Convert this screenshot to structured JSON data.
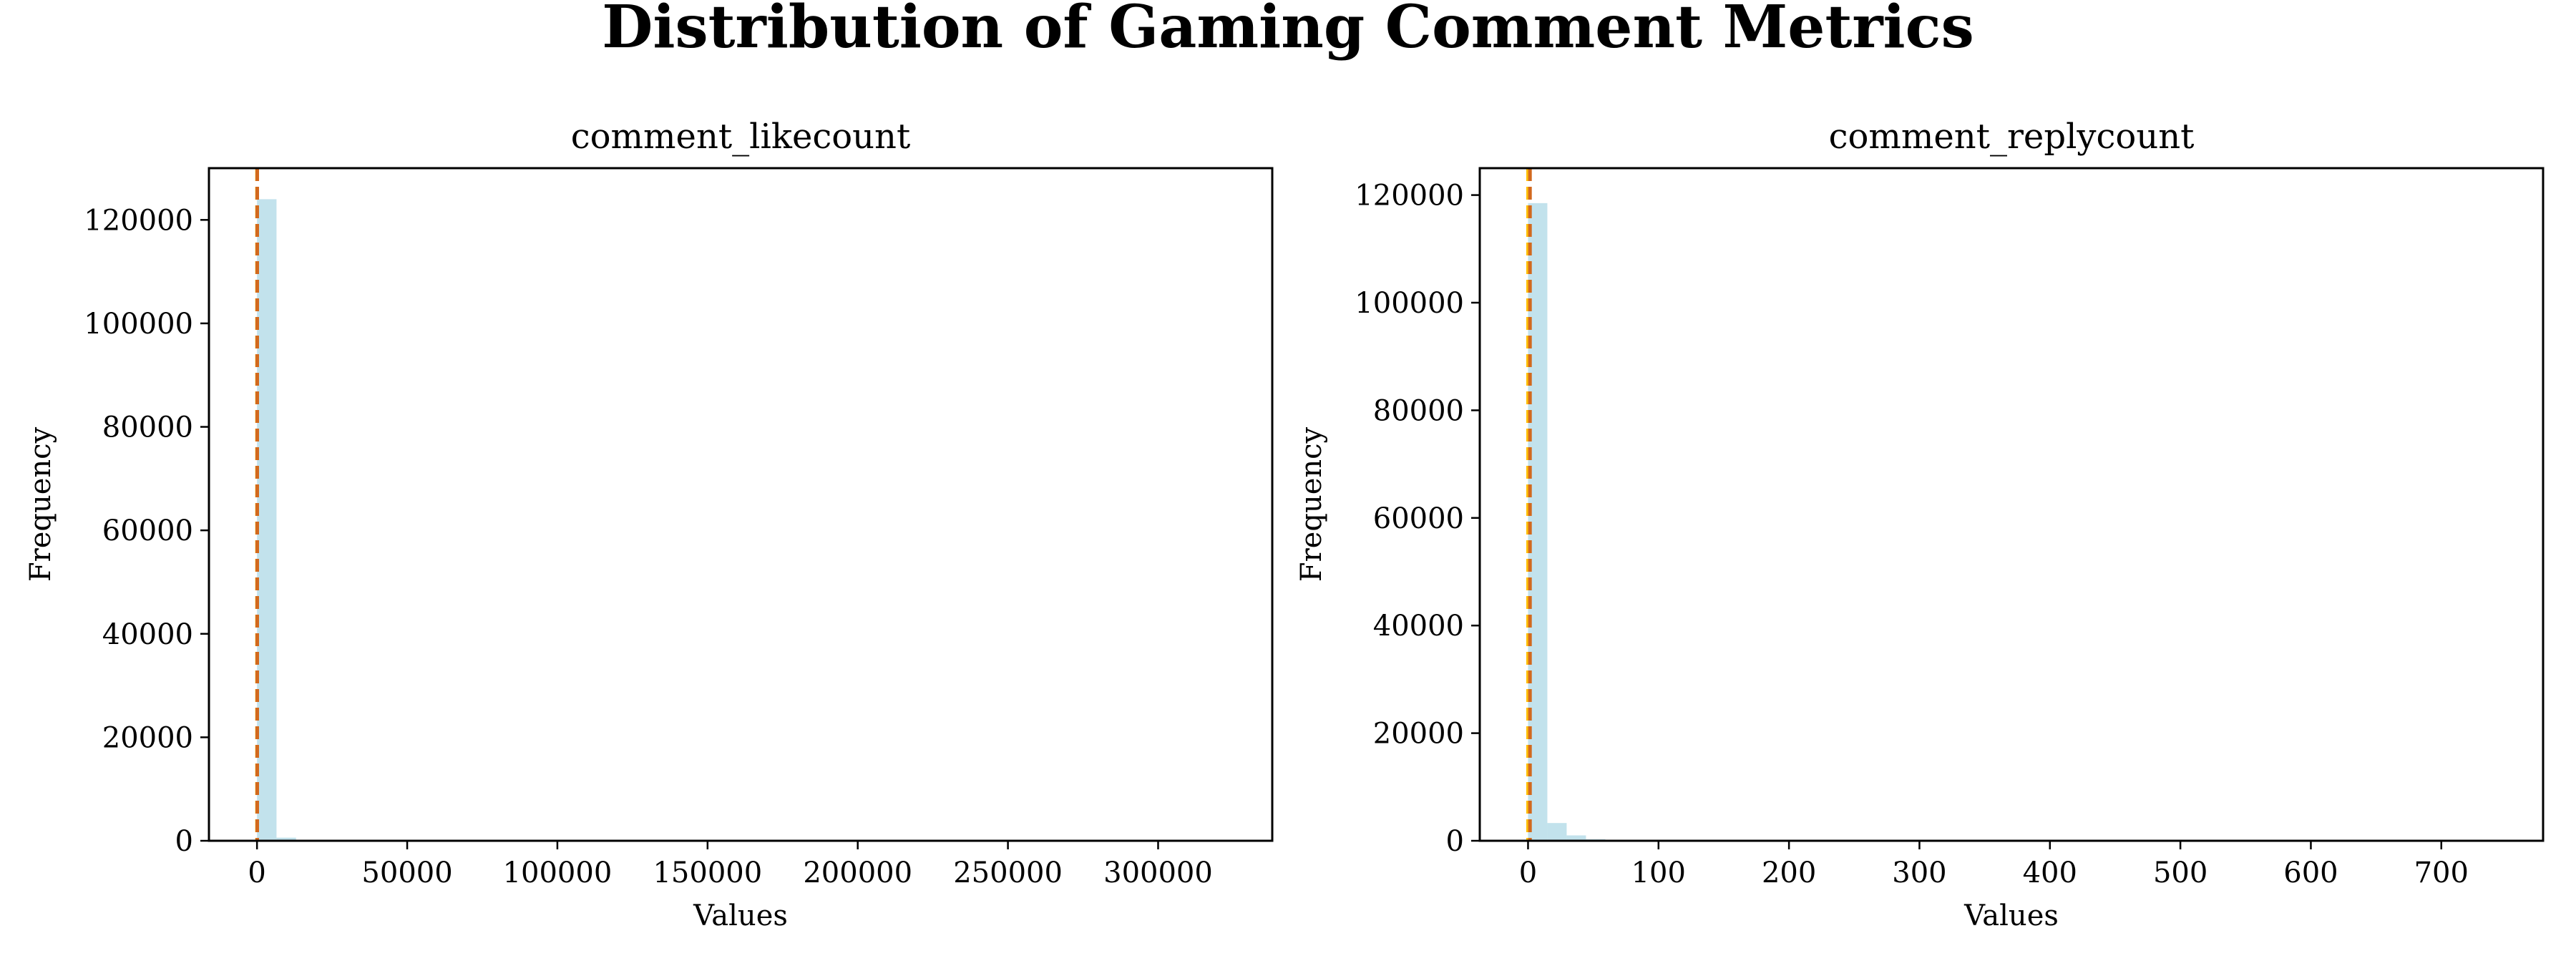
{
  "figure": {
    "title": "Distribution of Gaming Comment Metrics"
  },
  "colors": {
    "bar": "#add8e6",
    "mean_line": "#d2691e",
    "median_line": "#ffc107",
    "axes": "#000000"
  },
  "chart_data": [
    {
      "type": "bar",
      "subtype": "histogram",
      "title": "comment_likecount",
      "xlabel": "Values",
      "ylabel": "Frequency",
      "xlim": [
        -16000,
        338000
      ],
      "ylim": [
        0,
        130000
      ],
      "xticks": [
        0,
        50000,
        100000,
        150000,
        200000,
        250000,
        300000
      ],
      "yticks": [
        0,
        20000,
        40000,
        60000,
        80000,
        100000,
        120000
      ],
      "bin_width": 6500,
      "bins": [
        {
          "start": 0,
          "count": 124000
        },
        {
          "start": 6500,
          "count": 600
        }
      ],
      "mean": 80,
      "median": 0,
      "grid": false
    },
    {
      "type": "bar",
      "subtype": "histogram",
      "title": "comment_replycount",
      "xlabel": "Values",
      "ylabel": "Frequency",
      "xlim": [
        -37,
        778
      ],
      "ylim": [
        0,
        125000
      ],
      "xticks": [
        0,
        100,
        200,
        300,
        400,
        500,
        600,
        700
      ],
      "yticks": [
        0,
        20000,
        40000,
        60000,
        80000,
        100000,
        120000
      ],
      "bin_width": 14.8,
      "bins": [
        {
          "start": 0,
          "count": 118500
        },
        {
          "start": 14.8,
          "count": 3300
        },
        {
          "start": 29.6,
          "count": 1000
        },
        {
          "start": 44.4,
          "count": 300
        },
        {
          "start": 59.2,
          "count": 100
        }
      ],
      "mean": 1.5,
      "median": 0,
      "grid": false
    }
  ]
}
